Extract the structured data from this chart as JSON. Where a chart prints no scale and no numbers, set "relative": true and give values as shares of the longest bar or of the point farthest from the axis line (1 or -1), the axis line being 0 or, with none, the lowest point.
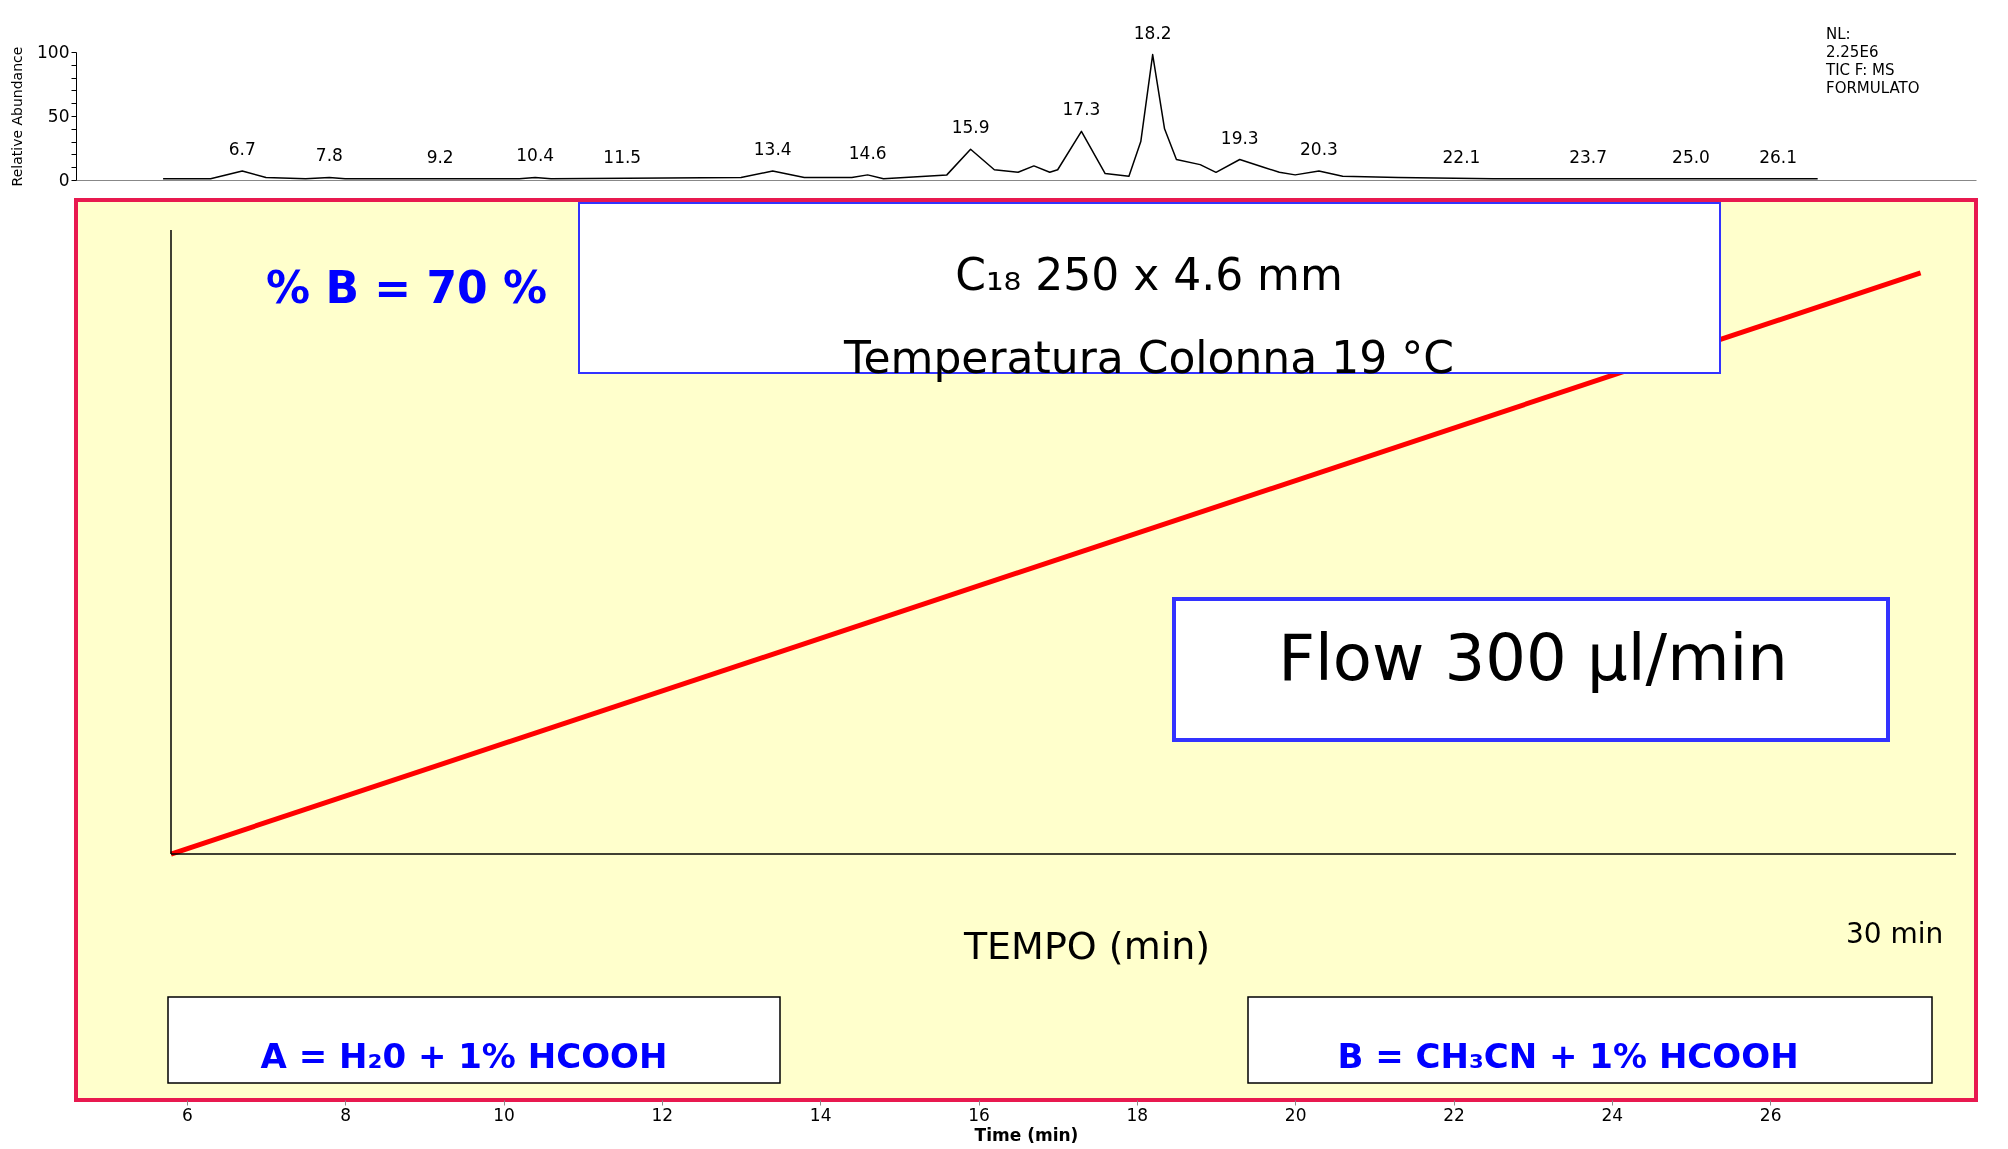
{
  "chart_data": [
    {
      "type": "line",
      "ylabel": "Relative Abundance",
      "xlim": [
        4.6,
        28.6
      ],
      "ylim": [
        0,
        100
      ],
      "yticks": [
        0,
        {
          "value": 10,
          "label": null
        },
        {
          "value": 20,
          "label": null
        },
        {
          "value": 30,
          "label": null
        },
        {
          "value": 40,
          "label": null
        },
        50,
        {
          "value": 60,
          "label": null
        },
        {
          "value": 70,
          "label": null
        },
        {
          "value": 80,
          "label": null
        },
        {
          "value": 90,
          "label": null
        },
        100
      ],
      "tick_labels": "y",
      "x": [
        5.7,
        6.3,
        6.7,
        7.0,
        7.5,
        7.8,
        8.0,
        10.2,
        10.4,
        10.6,
        13.0,
        13.4,
        13.8,
        14.4,
        14.6,
        14.8,
        15.6,
        15.9,
        16.2,
        16.5,
        16.7,
        16.9,
        17.0,
        17.3,
        17.6,
        17.9,
        18.05,
        18.2,
        18.35,
        18.5,
        18.8,
        19.0,
        19.3,
        19.6,
        19.8,
        20.0,
        20.3,
        20.6,
        21.3,
        22.5,
        26.6
      ],
      "series": [
        {
          "color": "#000000",
          "values": [
            1,
            1,
            7,
            2,
            1,
            2,
            1,
            1,
            2,
            1,
            2,
            7,
            2,
            2,
            4,
            1,
            4,
            24,
            8,
            6,
            11,
            6,
            8,
            38,
            5,
            3,
            30,
            98,
            40,
            16,
            12,
            6,
            16,
            10,
            6,
            4,
            7,
            3,
            2,
            1,
            1
          ]
        }
      ],
      "annotations": [
        {
          "text": "6.7",
          "x": 6.7,
          "y": 7
        },
        {
          "text": "7.8",
          "x": 7.8,
          "y": 2
        },
        {
          "text": "9.2",
          "x": 9.2,
          "y": 1
        },
        {
          "text": "10.4",
          "x": 10.4,
          "y": 2
        },
        {
          "text": "11.5",
          "x": 11.5,
          "y": 1
        },
        {
          "text": "13.4",
          "x": 13.4,
          "y": 7
        },
        {
          "text": "14.6",
          "x": 14.6,
          "y": 4
        },
        {
          "text": "15.9",
          "x": 15.9,
          "y": 24
        },
        {
          "text": "17.3",
          "x": 17.3,
          "y": 38
        },
        {
          "text": "18.2",
          "x": 18.2,
          "y": 98
        },
        {
          "text": "19.3",
          "x": 19.3,
          "y": 16
        },
        {
          "text": "20.3",
          "x": 20.3,
          "y": 7
        },
        {
          "text": "22.1",
          "x": 22.1,
          "y": 1
        },
        {
          "text": "23.7",
          "x": 23.7,
          "y": 1
        },
        {
          "text": "25.0",
          "x": 25.0,
          "y": 1
        },
        {
          "text": "26.1",
          "x": 26.1,
          "y": 1
        },
        "NL:",
        "2.25E6",
        "TIC F:   MS",
        "FORMULATO"
      ]
    },
    {
      "type": "line",
      "relative": true,
      "xlabel": "Time (min)",
      "xlim": [
        4.6,
        28.6
      ],
      "xticks": [
        6,
        8,
        10,
        12,
        14,
        16,
        18,
        20,
        22,
        24,
        26
      ],
      "x": [
        5.8,
        27.9
      ],
      "series": [
        {
          "color": "#ff0000",
          "values": [
            0,
            1
          ]
        }
      ],
      "ref_lines": [
        {
          "axis": "x",
          "value": 5.8,
          "color": "#000000"
        },
        {
          "axis": "y",
          "value": 0,
          "color": "#000000"
        }
      ],
      "annotations": [
        "% B  = 70 %",
        "C₁₈  250 x 4.6 mm",
        "Temperatura Colonna 19 °C",
        "Flow 300 µl/min",
        "TEMPO (min)",
        "30 min",
        "A = H₂0 + 1% HCOOH",
        "B = CH₃CN + 1% HCOOH"
      ]
    }
  ]
}
